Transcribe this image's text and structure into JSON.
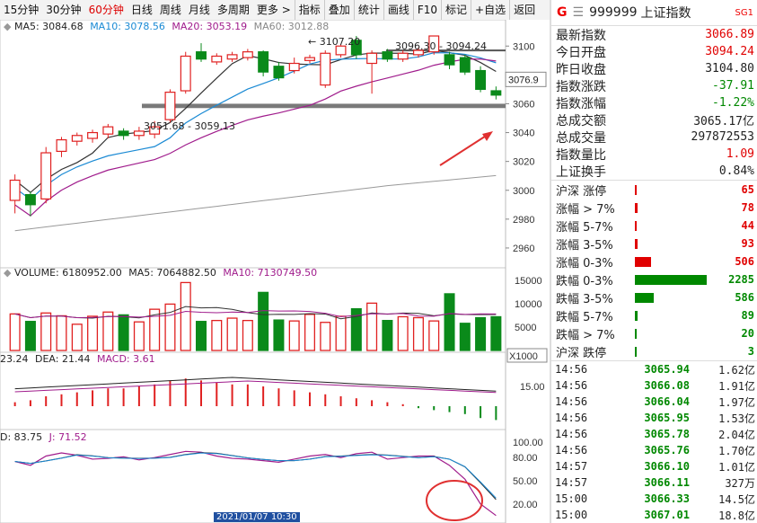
{
  "toolbar": {
    "left": [
      "15分钟",
      "30分钟",
      "60分钟",
      "日线",
      "周线",
      "月线",
      "多周期",
      "更多 >"
    ],
    "right": [
      "指标",
      "叠加",
      "统计",
      "画线",
      "F10",
      "标记",
      "+自选",
      "返回"
    ],
    "active": "60分钟"
  },
  "ma_legend": {
    "ma5": "MA5: 3084.68",
    "ma10": "MA10: 3078.56",
    "ma20": "MA20: 3053.19",
    "ma60": "MA60: 3012.88"
  },
  "price_axis": {
    "ticks": [
      "3100",
      "3080",
      "3060",
      "3040",
      "3020",
      "3000",
      "2980",
      "2960"
    ],
    "current": "3076.9"
  },
  "annotations": {
    "high": "3107.20",
    "zone_top": "3096.30 - 3094.24",
    "zone_bottom": "3051.68 - 3059.13"
  },
  "volume_legend": {
    "volume": "VOLUME: 6180952.00",
    "ma5": "MA5: 7064882.50",
    "ma10": "MA10: 7130749.50"
  },
  "volume_axis": {
    "ticks": [
      "15000",
      "10000",
      "5000"
    ],
    "unit": "X1000"
  },
  "macd_legend": {
    "dif": "23.24",
    "dea": "DEA: 21.44",
    "macd": "MACD: 3.61"
  },
  "macd_axis": {
    "ticks": [
      "15.00"
    ]
  },
  "kdj_legend": {
    "d": "D: 83.75",
    "j": "J: 71.52"
  },
  "kdj_axis": {
    "ticks": [
      "100.00",
      "80.00",
      "50.00",
      "20.00"
    ]
  },
  "bottom_axis": {
    "label": "2021/01/07 10:30"
  },
  "panel": {
    "marker": "G",
    "code": "999999",
    "name": "上证指数",
    "badge": "SG1",
    "quote": [
      {
        "label": "最新指数",
        "value": "3066.89",
        "color": "#e00000"
      },
      {
        "label": "今日开盘",
        "value": "3094.24",
        "color": "#e00000"
      },
      {
        "label": "昨日收盘",
        "value": "3104.80",
        "color": "#222222"
      },
      {
        "label": "指数涨跌",
        "value": "-37.91",
        "color": "#008800"
      },
      {
        "label": "指数涨幅",
        "value": "-1.22%",
        "color": "#008800"
      },
      {
        "label": "总成交额",
        "value": "3065.17亿",
        "color": "#222222"
      },
      {
        "label": "总成交量",
        "value": "297872553",
        "color": "#222222"
      },
      {
        "label": "指数量比",
        "value": "1.09",
        "color": "#e00000"
      },
      {
        "label": "上证换手",
        "value": "0.84%",
        "color": "#222222"
      }
    ],
    "breadth": [
      {
        "label": "沪深 涨停",
        "value": "65",
        "count": 65,
        "color": "#e00000"
      },
      {
        "label": "涨幅 > 7%",
        "value": "78",
        "count": 78,
        "color": "#e00000"
      },
      {
        "label": "涨幅 5-7%",
        "value": "44",
        "count": 44,
        "color": "#e00000"
      },
      {
        "label": "涨幅 3-5%",
        "value": "93",
        "count": 93,
        "color": "#e00000"
      },
      {
        "label": "涨幅 0-3%",
        "value": "506",
        "count": 506,
        "color": "#e00000"
      },
      {
        "label": "跌幅 0-3%",
        "value": "2285",
        "count": 2285,
        "color": "#008800"
      },
      {
        "label": "跌幅 3-5%",
        "value": "586",
        "count": 586,
        "color": "#008800"
      },
      {
        "label": "跌幅 5-7%",
        "value": "89",
        "count": 89,
        "color": "#008800"
      },
      {
        "label": "跌幅 > 7%",
        "value": "20",
        "count": 20,
        "color": "#008800"
      },
      {
        "label": "沪深 跌停",
        "value": "3",
        "count": 3,
        "color": "#008800"
      }
    ],
    "ticks": [
      {
        "time": "14:56",
        "price": "3065.94",
        "amount": "1.62亿"
      },
      {
        "time": "14:56",
        "price": "3066.08",
        "amount": "1.91亿"
      },
      {
        "time": "14:56",
        "price": "3066.04",
        "amount": "1.97亿"
      },
      {
        "time": "14:56",
        "price": "3065.95",
        "amount": "1.53亿"
      },
      {
        "time": "14:56",
        "price": "3065.78",
        "amount": "2.04亿"
      },
      {
        "time": "14:56",
        "price": "3065.76",
        "amount": "1.70亿"
      },
      {
        "time": "14:57",
        "price": "3066.10",
        "amount": "1.01亿"
      },
      {
        "time": "14:57",
        "price": "3066.11",
        "amount": "327万"
      },
      {
        "time": "15:00",
        "price": "3066.33",
        "amount": "14.5亿"
      },
      {
        "time": "15:00",
        "price": "3067.01",
        "amount": "18.8亿"
      }
    ]
  },
  "chart_data": {
    "type": "candlestick",
    "candles": [
      {
        "o": 2993,
        "c": 3007,
        "h": 3011,
        "l": 2984
      },
      {
        "o": 2997,
        "c": 2990,
        "h": 2999,
        "l": 2982
      },
      {
        "o": 2994,
        "c": 3026,
        "h": 3030,
        "l": 2991
      },
      {
        "o": 3027,
        "c": 3035,
        "h": 3037,
        "l": 3023
      },
      {
        "o": 3034,
        "c": 3038,
        "h": 3040,
        "l": 3031
      },
      {
        "o": 3036,
        "c": 3040,
        "h": 3042,
        "l": 3033
      },
      {
        "o": 3039,
        "c": 3044,
        "h": 3046,
        "l": 3036
      },
      {
        "o": 3041,
        "c": 3038,
        "h": 3043,
        "l": 3035
      },
      {
        "o": 3038,
        "c": 3041,
        "h": 3044,
        "l": 3035
      },
      {
        "o": 3039,
        "c": 3044,
        "h": 3048,
        "l": 3036
      },
      {
        "o": 3049,
        "c": 3068,
        "h": 3070,
        "l": 3047
      },
      {
        "o": 3069,
        "c": 3093,
        "h": 3096,
        "l": 3067
      },
      {
        "o": 3096,
        "c": 3091,
        "h": 3102,
        "l": 3089
      },
      {
        "o": 3089,
        "c": 3093,
        "h": 3095,
        "l": 3087
      },
      {
        "o": 3091,
        "c": 3094,
        "h": 3096,
        "l": 3089
      },
      {
        "o": 3092,
        "c": 3096,
        "h": 3098,
        "l": 3090
      },
      {
        "o": 3096,
        "c": 3082,
        "h": 3097,
        "l": 3079
      },
      {
        "o": 3086,
        "c": 3078,
        "h": 3089,
        "l": 3076
      },
      {
        "o": 3083,
        "c": 3088,
        "h": 3092,
        "l": 3081
      },
      {
        "o": 3090,
        "c": 3092,
        "h": 3094,
        "l": 3088
      },
      {
        "o": 3073,
        "c": 3095,
        "h": 3097,
        "l": 3071
      },
      {
        "o": 3094,
        "c": 3100,
        "h": 3101,
        "l": 3092
      },
      {
        "o": 3104,
        "c": 3094,
        "h": 3107,
        "l": 3091
      },
      {
        "o": 3088,
        "c": 3095,
        "h": 3097,
        "l": 3067
      },
      {
        "o": 3096,
        "c": 3091,
        "h": 3098,
        "l": 3089
      },
      {
        "o": 3091,
        "c": 3095,
        "h": 3097,
        "l": 3089
      },
      {
        "o": 3094,
        "c": 3097,
        "h": 3099,
        "l": 3092
      },
      {
        "o": 3096,
        "c": 3107,
        "h": 3107,
        "l": 3094
      },
      {
        "o": 3094,
        "c": 3087,
        "h": 3096,
        "l": 3084
      },
      {
        "o": 3092,
        "c": 3082,
        "h": 3094,
        "l": 3080
      },
      {
        "o": 3083,
        "c": 3070,
        "h": 3086,
        "l": 3068
      },
      {
        "o": 3069,
        "c": 3066,
        "h": 3072,
        "l": 3063
      }
    ],
    "ylim": [
      2950,
      3112
    ],
    "zone_band": [
      3057,
      3060
    ],
    "ref_line": 3097,
    "volume": [
      7800,
      6200,
      8000,
      7400,
      5600,
      7300,
      8200,
      7600,
      6100,
      8800,
      9900,
      14500,
      6200,
      6400,
      6900,
      6400,
      12400,
      6500,
      6300,
      7700,
      6000,
      7300,
      8900,
      10100,
      6400,
      7200,
      7000,
      6300,
      12100,
      5800,
      7000,
      7200
    ],
    "volume_ylim": [
      0,
      16500
    ],
    "macd_hist": [
      2,
      3,
      5,
      6,
      7,
      8,
      9,
      9,
      10,
      11,
      13,
      14,
      13,
      12,
      11,
      11,
      10,
      9,
      8,
      7,
      6,
      5,
      4,
      3,
      2,
      1,
      -1,
      -2,
      -3,
      -4,
      -6,
      -7
    ],
    "kdj_j": [
      75,
      70,
      82,
      86,
      83,
      78,
      79,
      81,
      77,
      80,
      84,
      88,
      87,
      82,
      79,
      78,
      76,
      74,
      78,
      82,
      84,
      80,
      85,
      87,
      78,
      80,
      82,
      82,
      70,
      52,
      20,
      5
    ]
  }
}
